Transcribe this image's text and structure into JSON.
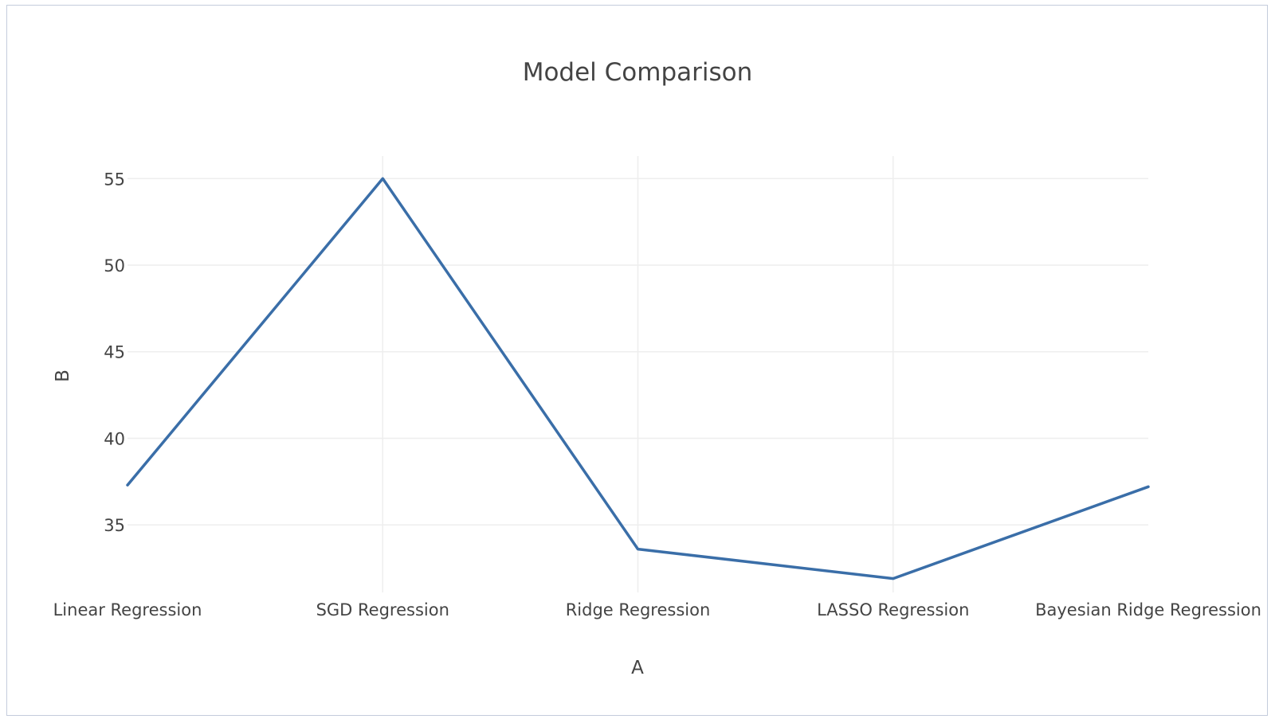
{
  "chart_data": {
    "type": "line",
    "title": "Model Comparison",
    "xlabel": "A",
    "ylabel": "B",
    "categories": [
      "Linear Regression",
      "SGD Regression",
      "Ridge Regression",
      "LASSO Regression",
      "Bayesian Ridge Regression"
    ],
    "series": [
      {
        "values": [
          37.3,
          55.0,
          33.6,
          31.9,
          37.2
        ]
      }
    ],
    "yticks": [
      35,
      40,
      45,
      50,
      55
    ],
    "ylim": [
      31.1,
      56.3
    ],
    "grid": true,
    "line_color": "#3a6ea8"
  }
}
